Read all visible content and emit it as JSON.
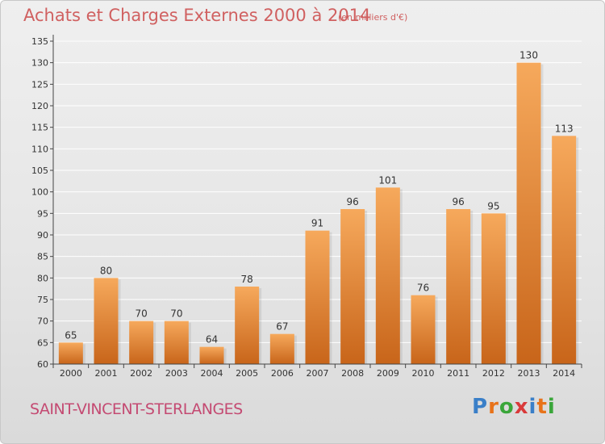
{
  "header": {
    "title": "Achats et Charges Externes 2000 à 2014",
    "unit": "(en milliers d'€)"
  },
  "footer": {
    "commune": "SAINT-VINCENT-STERLANGES"
  },
  "logo": {
    "text": "Proxiti",
    "letter_colors": [
      "#3a7fc8",
      "#e8731a",
      "#3aa63a",
      "#d93a3a",
      "#3a7fc8",
      "#e8731a",
      "#3aa63a"
    ]
  },
  "colors": {
    "bar_top": "#f6a95c",
    "bar_bottom": "#c8651a",
    "axis": "#444444",
    "grid": "#ffffff"
  },
  "chart_data": {
    "type": "bar",
    "title": "Achats et Charges Externes 2000 à 2014",
    "categories": [
      "2000",
      "2001",
      "2002",
      "2003",
      "2004",
      "2005",
      "2006",
      "2007",
      "2008",
      "2009",
      "2010",
      "2011",
      "2012",
      "2013",
      "2014"
    ],
    "values": [
      65,
      80,
      70,
      70,
      64,
      78,
      67,
      91,
      96,
      101,
      76,
      96,
      95,
      130,
      113
    ],
    "ylim": [
      60,
      135
    ],
    "yticks": [
      60,
      65,
      70,
      75,
      80,
      85,
      90,
      95,
      100,
      105,
      110,
      115,
      120,
      125,
      130,
      135
    ],
    "grid": true,
    "data_labels": true
  }
}
